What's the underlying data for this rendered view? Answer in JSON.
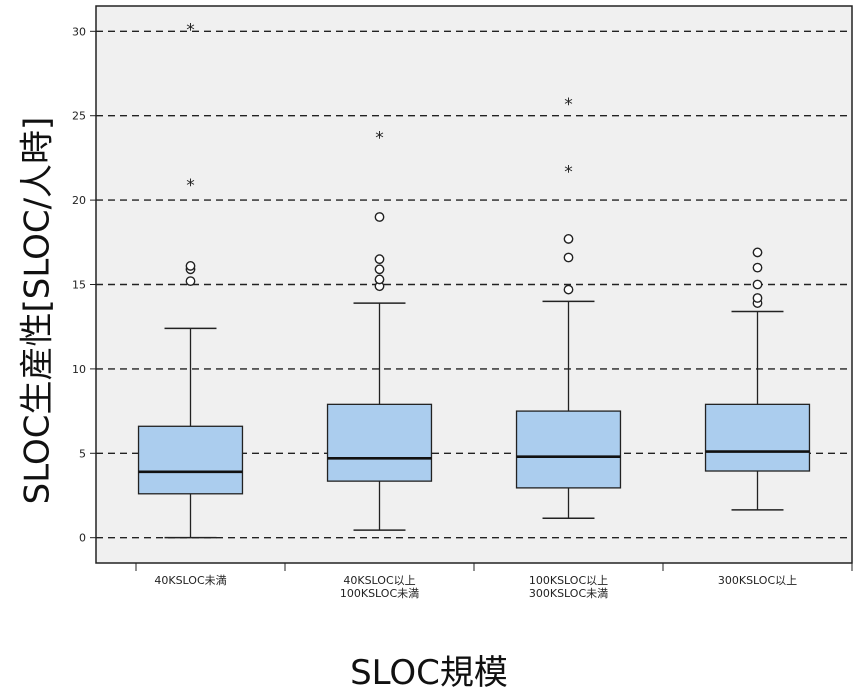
{
  "chart_data": {
    "type": "box",
    "ylabel": "SLOC生産性[SLOC/人時]",
    "xlabel": "SLOC規模",
    "ylim": [
      -1.5,
      31.5
    ],
    "yticks": [
      0,
      5,
      10,
      15,
      20,
      25,
      30
    ],
    "grid": "horizontal dashed",
    "categories": [
      [
        "40KSLOC未満"
      ],
      [
        "40KSLOC以上",
        "100KSLOC未満"
      ],
      [
        "100KSLOC以上",
        "300KSLOC未満"
      ],
      [
        "300KSLOC以上"
      ]
    ],
    "boxes": [
      {
        "whisker_low": 0,
        "q1": 2.6,
        "median": 3.9,
        "q3": 6.6,
        "whisker_high": 12.4,
        "outliers": [
          15.2,
          15.9,
          16.1
        ],
        "extremes": [
          20.9,
          30.1
        ]
      },
      {
        "whisker_low": 0.45,
        "q1": 3.35,
        "median": 4.7,
        "q3": 7.9,
        "whisker_high": 13.9,
        "outliers": [
          14.9,
          15.3,
          15.9,
          16.5,
          19.0
        ],
        "extremes": [
          23.7
        ]
      },
      {
        "whisker_low": 1.15,
        "q1": 2.95,
        "median": 4.8,
        "q3": 7.5,
        "whisker_high": 14.0,
        "outliers": [
          14.7,
          16.6,
          17.7
        ],
        "extremes": [
          21.7,
          25.7
        ]
      },
      {
        "whisker_low": 1.65,
        "q1": 3.95,
        "median": 5.1,
        "q3": 7.9,
        "whisker_high": 13.4,
        "outliers": [
          13.9,
          14.2,
          15.0,
          16.0,
          16.9
        ],
        "extremes": []
      }
    ],
    "colors": {
      "box_fill": "#abcdee",
      "plot_bg": "#f0f0f0",
      "gridline": "#222222"
    }
  }
}
